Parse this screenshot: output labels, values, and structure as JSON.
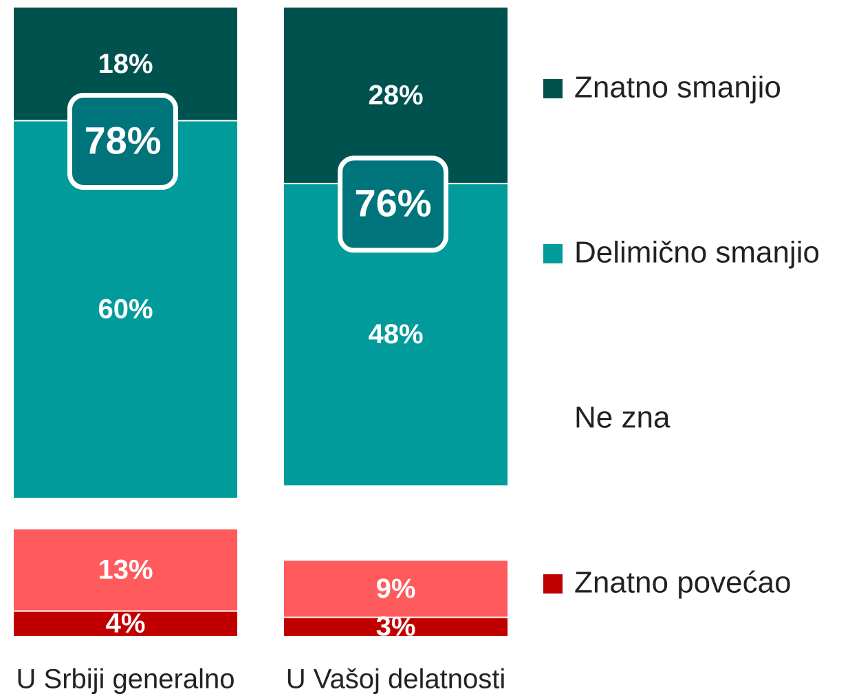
{
  "chart_data": {
    "type": "stacked_bar",
    "categories": [
      "U Srbiji generalno",
      "U Vašoj delatnosti"
    ],
    "series": [
      {
        "name": "Znatno smanjio",
        "color": "#00524f",
        "values": [
          18,
          28
        ],
        "value_labels": [
          "18%",
          "28%"
        ]
      },
      {
        "name": "Delimično smanjio",
        "color": "#009b9a",
        "values": [
          60,
          48
        ],
        "value_labels": [
          "60%",
          "48%"
        ]
      },
      {
        "name": "Ne zna",
        "color": "#ffffff",
        "values": [
          5,
          12
        ]
      },
      {
        "color": "#ff5a5c",
        "values": [
          13,
          9
        ],
        "value_labels": [
          "13%",
          "9%"
        ]
      },
      {
        "name": "Znatno povećao",
        "color": "#c00000",
        "values": [
          4,
          3
        ],
        "value_labels": [
          "4%",
          "3%"
        ]
      }
    ],
    "totals": {
      "values": [
        78,
        76
      ],
      "value_labels": [
        "78%",
        "76%"
      ]
    }
  }
}
